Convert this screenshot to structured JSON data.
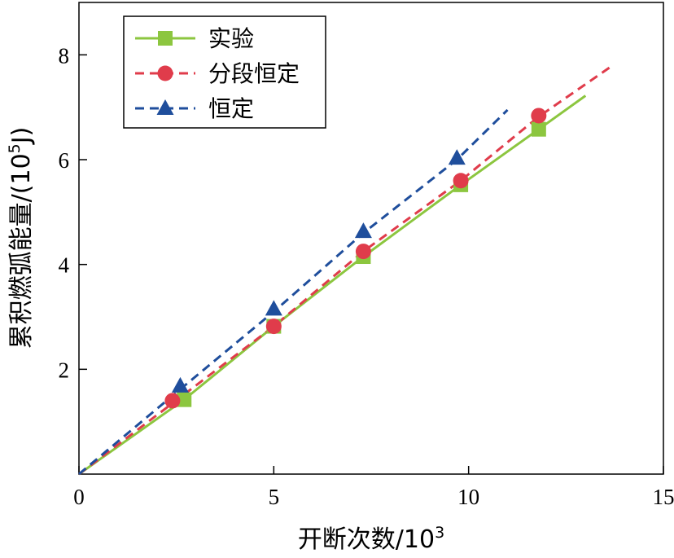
{
  "chart_data": {
    "type": "line",
    "xlabel": "开断次数/10",
    "xlabel_sup": "3",
    "ylabel": "累积燃弧能量/(10",
    "ylabel_sup": "5",
    "ylabel_end": "J)",
    "xlim": [
      0,
      15
    ],
    "ylim": [
      0,
      9
    ],
    "x_ticks": [
      0,
      5,
      10,
      15
    ],
    "x_tick_labels": [
      "0",
      "5",
      "10",
      "15"
    ],
    "y_ticks": [
      2,
      4,
      6,
      8
    ],
    "y_tick_labels": [
      "2",
      "4",
      "6",
      "8"
    ],
    "grid": false,
    "legend_position": "top-left",
    "series": [
      {
        "name": "实验",
        "color": "#8cc63f",
        "line_style": "solid",
        "marker": "square",
        "line": [
          [
            0,
            0
          ],
          [
            2.7,
            1.42
          ],
          [
            5,
            2.82
          ],
          [
            7.3,
            4.15
          ],
          [
            9.8,
            5.52
          ],
          [
            11.8,
            6.58
          ],
          [
            13,
            7.22
          ]
        ],
        "markers": [
          [
            2.7,
            1.42
          ],
          [
            5,
            2.82
          ],
          [
            7.3,
            4.15
          ],
          [
            9.8,
            5.52
          ],
          [
            11.8,
            6.58
          ]
        ]
      },
      {
        "name": "分段恒定",
        "color": "#e03c4b",
        "line_style": "dashed",
        "marker": "circle",
        "line": [
          [
            0,
            0
          ],
          [
            2.4,
            1.35
          ],
          [
            5,
            2.82
          ],
          [
            7.3,
            4.25
          ],
          [
            9.8,
            5.6
          ],
          [
            11.8,
            6.82
          ],
          [
            13.7,
            7.8
          ]
        ],
        "markers": [
          [
            2.4,
            1.4
          ],
          [
            5,
            2.82
          ],
          [
            7.3,
            4.25
          ],
          [
            9.8,
            5.6
          ],
          [
            11.8,
            6.84
          ]
        ]
      },
      {
        "name": "恒定",
        "color": "#1f4e9c",
        "line_style": "dashed",
        "marker": "triangle",
        "line": [
          [
            0,
            0
          ],
          [
            2.6,
            1.62
          ],
          [
            5,
            3.1
          ],
          [
            7.3,
            4.6
          ],
          [
            9.7,
            6.0
          ],
          [
            11,
            6.95
          ]
        ],
        "markers": [
          [
            2.6,
            1.68
          ],
          [
            5,
            3.15
          ],
          [
            7.3,
            4.63
          ],
          [
            9.7,
            6.03
          ]
        ]
      }
    ]
  }
}
